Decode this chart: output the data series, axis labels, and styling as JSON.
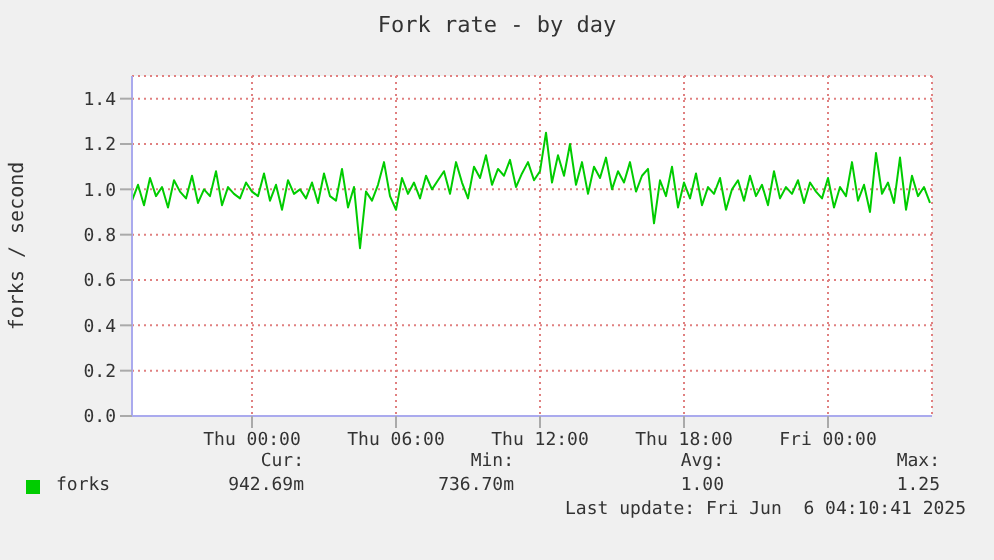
{
  "chart_data": {
    "type": "line",
    "title": "Fork rate - by day",
    "ylabel": "forks / second",
    "x": [
      "2025-06-04T19:00",
      "2025-06-04T19:15",
      "2025-06-04T19:30",
      "2025-06-04T19:45",
      "2025-06-04T20:00",
      "2025-06-04T20:15",
      "2025-06-04T20:30",
      "2025-06-04T20:45",
      "2025-06-04T21:00",
      "2025-06-04T21:15",
      "2025-06-04T21:30",
      "2025-06-04T21:45",
      "2025-06-04T22:00",
      "2025-06-04T22:15",
      "2025-06-04T22:30",
      "2025-06-04T22:45",
      "2025-06-04T23:00",
      "2025-06-04T23:15",
      "2025-06-04T23:30",
      "2025-06-04T23:45",
      "2025-06-05T00:00",
      "2025-06-05T00:15",
      "2025-06-05T00:30",
      "2025-06-05T00:45",
      "2025-06-05T01:00",
      "2025-06-05T01:15",
      "2025-06-05T01:30",
      "2025-06-05T01:45",
      "2025-06-05T02:00",
      "2025-06-05T02:15",
      "2025-06-05T02:30",
      "2025-06-05T02:45",
      "2025-06-05T03:00",
      "2025-06-05T03:15",
      "2025-06-05T03:30",
      "2025-06-05T03:45",
      "2025-06-05T04:00",
      "2025-06-05T04:15",
      "2025-06-05T04:30",
      "2025-06-05T04:45",
      "2025-06-05T05:00",
      "2025-06-05T05:15",
      "2025-06-05T05:30",
      "2025-06-05T05:45",
      "2025-06-05T06:00",
      "2025-06-05T06:15",
      "2025-06-05T06:30",
      "2025-06-05T06:45",
      "2025-06-05T07:00",
      "2025-06-05T07:15",
      "2025-06-05T07:30",
      "2025-06-05T07:45",
      "2025-06-05T08:00",
      "2025-06-05T08:15",
      "2025-06-05T08:30",
      "2025-06-05T08:45",
      "2025-06-05T09:00",
      "2025-06-05T09:15",
      "2025-06-05T09:30",
      "2025-06-05T09:45",
      "2025-06-05T10:00",
      "2025-06-05T10:15",
      "2025-06-05T10:30",
      "2025-06-05T10:45",
      "2025-06-05T11:00",
      "2025-06-05T11:15",
      "2025-06-05T11:30",
      "2025-06-05T11:45",
      "2025-06-05T12:00",
      "2025-06-05T12:15",
      "2025-06-05T12:30",
      "2025-06-05T12:45",
      "2025-06-05T13:00",
      "2025-06-05T13:15",
      "2025-06-05T13:30",
      "2025-06-05T13:45",
      "2025-06-05T14:00",
      "2025-06-05T14:15",
      "2025-06-05T14:30",
      "2025-06-05T14:45",
      "2025-06-05T15:00",
      "2025-06-05T15:15",
      "2025-06-05T15:30",
      "2025-06-05T15:45",
      "2025-06-05T16:00",
      "2025-06-05T16:15",
      "2025-06-05T16:30",
      "2025-06-05T16:45",
      "2025-06-05T17:00",
      "2025-06-05T17:15",
      "2025-06-05T17:30",
      "2025-06-05T17:45",
      "2025-06-05T18:00",
      "2025-06-05T18:15",
      "2025-06-05T18:30",
      "2025-06-05T18:45",
      "2025-06-05T19:00",
      "2025-06-05T19:15",
      "2025-06-05T19:30",
      "2025-06-05T19:45",
      "2025-06-05T20:00",
      "2025-06-05T20:15",
      "2025-06-05T20:30",
      "2025-06-05T20:45",
      "2025-06-05T21:00",
      "2025-06-05T21:15",
      "2025-06-05T21:30",
      "2025-06-05T21:45",
      "2025-06-05T22:00",
      "2025-06-05T22:15",
      "2025-06-05T22:30",
      "2025-06-05T22:45",
      "2025-06-05T23:00",
      "2025-06-05T23:15",
      "2025-06-05T23:30",
      "2025-06-05T23:45",
      "2025-06-06T00:00",
      "2025-06-06T00:15",
      "2025-06-06T00:30",
      "2025-06-06T00:45",
      "2025-06-06T01:00",
      "2025-06-06T01:15",
      "2025-06-06T01:30",
      "2025-06-06T01:45",
      "2025-06-06T02:00",
      "2025-06-06T02:15",
      "2025-06-06T02:30",
      "2025-06-06T02:45",
      "2025-06-06T03:00",
      "2025-06-06T03:15",
      "2025-06-06T03:30",
      "2025-06-06T03:45",
      "2025-06-06T04:00",
      "2025-06-06T04:15"
    ],
    "series": [
      {
        "name": "forks",
        "color": "#00cc00",
        "values": [
          0.95,
          1.02,
          0.93,
          1.05,
          0.97,
          1.01,
          0.92,
          1.04,
          0.99,
          0.96,
          1.06,
          0.94,
          1.0,
          0.97,
          1.08,
          0.93,
          1.01,
          0.98,
          0.96,
          1.03,
          0.99,
          0.97,
          1.07,
          0.95,
          1.02,
          0.91,
          1.04,
          0.98,
          1.0,
          0.96,
          1.03,
          0.94,
          1.07,
          0.97,
          0.95,
          1.09,
          0.92,
          1.01,
          0.74,
          0.99,
          0.95,
          1.02,
          1.12,
          0.97,
          0.91,
          1.05,
          0.98,
          1.03,
          0.96,
          1.06,
          1.0,
          1.04,
          1.08,
          0.98,
          1.12,
          1.03,
          0.96,
          1.1,
          1.05,
          1.15,
          1.02,
          1.09,
          1.06,
          1.13,
          1.01,
          1.07,
          1.12,
          1.04,
          1.08,
          1.25,
          1.03,
          1.15,
          1.06,
          1.2,
          1.02,
          1.12,
          0.98,
          1.1,
          1.05,
          1.14,
          1.0,
          1.08,
          1.03,
          1.12,
          0.99,
          1.06,
          1.09,
          0.85,
          1.04,
          0.97,
          1.1,
          0.92,
          1.03,
          0.96,
          1.07,
          0.93,
          1.01,
          0.98,
          1.05,
          0.91,
          1.0,
          1.04,
          0.95,
          1.06,
          0.97,
          1.02,
          0.93,
          1.08,
          0.96,
          1.01,
          0.98,
          1.04,
          0.94,
          1.03,
          0.99,
          0.96,
          1.05,
          0.92,
          1.01,
          0.97,
          1.12,
          0.95,
          1.02,
          0.9,
          1.16,
          0.98,
          1.03,
          0.94,
          1.14,
          0.91,
          1.06,
          0.97,
          1.01,
          0.94
        ]
      }
    ],
    "xlim": [
      "2025-06-04T19:00",
      "2025-06-06T04:20"
    ],
    "xticks": [
      {
        "value": "2025-06-05T00:00",
        "label": "Thu 00:00"
      },
      {
        "value": "2025-06-05T06:00",
        "label": "Thu 06:00"
      },
      {
        "value": "2025-06-05T12:00",
        "label": "Thu 12:00"
      },
      {
        "value": "2025-06-05T18:00",
        "label": "Thu 18:00"
      },
      {
        "value": "2025-06-06T00:00",
        "label": "Fri 00:00"
      }
    ],
    "ylim": [
      0,
      1.5
    ],
    "yticks": [
      {
        "value": 0,
        "label": "0.0"
      },
      {
        "value": 0.2,
        "label": "0.2"
      },
      {
        "value": 0.4,
        "label": "0.4"
      },
      {
        "value": 0.6,
        "label": "0.6"
      },
      {
        "value": 0.8,
        "label": "0.8"
      },
      {
        "value": 1.0,
        "label": "1.0"
      },
      {
        "value": 1.2,
        "label": "1.2"
      },
      {
        "value": 1.4,
        "label": "1.4"
      }
    ],
    "grid": true,
    "legend": "bottom left",
    "marker": "none",
    "line_style": "solid",
    "annotations": [
      "Cur:",
      "Min:",
      "Avg:",
      "Max:",
      "942.69m",
      "736.70m",
      "1.00",
      "1.25",
      "Last update: Fri Jun  6 04:10:41 2025"
    ]
  }
}
